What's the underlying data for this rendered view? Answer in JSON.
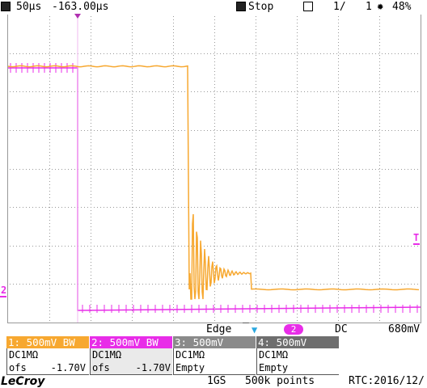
{
  "status_bar": {
    "timebase": "50µs",
    "offset": "-163.00µs",
    "run_state": "Stop",
    "acq_count": "1/",
    "acq_total": "1",
    "battery": "48%",
    "icons": [
      "scope-m-icon",
      "stop-icon",
      "layers-icon",
      "sun-icon"
    ]
  },
  "trigger": {
    "type": "Edge",
    "slope_icon": "falling-edge-icon",
    "source": "2",
    "coupling": "DC",
    "level": "680mV"
  },
  "channels": [
    {
      "header": "1: 500mV  BW",
      "coupling": "DC1MΩ",
      "offset_label": "ofs",
      "offset": "-1.70V",
      "color": "#f7a830"
    },
    {
      "header": "2: 500mV  BW",
      "coupling": "DC1MΩ",
      "offset_label": "ofs",
      "offset": "-1.70V",
      "color": "#e82de8"
    },
    {
      "header": "3: 500mV",
      "coupling": "DC1MΩ",
      "offset_label": "Empty",
      "offset": "",
      "color": "#8a8a8a"
    },
    {
      "header": "4: 500mV",
      "coupling": "DC1MΩ",
      "offset_label": "Empty",
      "offset": "",
      "color": "#6e6e6e"
    }
  ],
  "bottom_bar": {
    "brand": "LeCroy",
    "sample_rate": "1GS",
    "points": "500k points",
    "rtc": "RTC:2016/12/"
  },
  "markers": {
    "ch2_marker": "2",
    "trigger_level_marker": "T"
  },
  "colors": {
    "ch1": "#f7a830",
    "ch2": "#e82de8"
  }
}
